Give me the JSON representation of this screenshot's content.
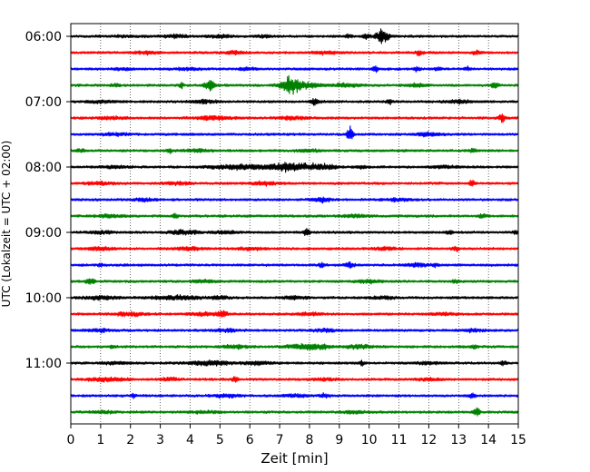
{
  "chart_data": {
    "type": "line",
    "title": "",
    "xlabel": "Zeit  [min]",
    "ylabel": "UTC (Lokalzeit = UTC + 02:00)",
    "xlim": [
      0,
      15
    ],
    "x_ticks": [
      "0",
      "1",
      "2",
      "3",
      "4",
      "5",
      "6",
      "7",
      "8",
      "9",
      "10",
      "11",
      "12",
      "13",
      "14",
      "15"
    ],
    "y_tick_labels": [
      "06:00",
      "07:00",
      "08:00",
      "09:00",
      "10:00",
      "11:00"
    ],
    "grid": "vertical dotted lines at each minute",
    "trace_minutes": 15,
    "trace_colors": [
      "#000000",
      "#ff0000",
      "#0000ff",
      "#008000"
    ],
    "trace_start_times": [
      "06:00",
      "06:15",
      "06:30",
      "06:45",
      "07:00",
      "07:15",
      "07:30",
      "07:45",
      "08:00",
      "08:15",
      "08:30",
      "08:45",
      "09:00",
      "09:15",
      "09:30",
      "09:45",
      "10:00",
      "10:15",
      "10:30",
      "10:45",
      "11:00",
      "11:15",
      "11:30",
      "11:45"
    ],
    "series": [
      {
        "start": "06:00",
        "color": "#000000",
        "events": [
          [
            2.0,
            0.5,
            0.5
          ],
          [
            10.45,
            0.15,
            7.0
          ],
          [
            9.9,
            0.1,
            2.0
          ],
          [
            3.5,
            0.3,
            1.2
          ],
          [
            5.0,
            0.3,
            1.2
          ],
          [
            6.5,
            0.2,
            1.0
          ],
          [
            9.3,
            0.1,
            1.3
          ]
        ]
      },
      {
        "start": "06:15",
        "color": "#ff0000",
        "events": [
          [
            2.5,
            0.3,
            1.1
          ],
          [
            5.5,
            0.2,
            1.3
          ],
          [
            8.5,
            0.3,
            1.2
          ],
          [
            11.7,
            0.1,
            2.2
          ],
          [
            13.6,
            0.1,
            1.5
          ]
        ]
      },
      {
        "start": "06:30",
        "color": "#0000ff",
        "events": [
          [
            1.8,
            0.2,
            1.2
          ],
          [
            3.9,
            0.3,
            1.0
          ],
          [
            5.9,
            0.2,
            1.3
          ],
          [
            10.2,
            0.07,
            3.0
          ],
          [
            11.6,
            0.08,
            1.6
          ],
          [
            12.3,
            0.08,
            1.6
          ],
          [
            13.3,
            0.07,
            1.6
          ]
        ]
      },
      {
        "start": "06:45",
        "color": "#008000",
        "events": [
          [
            1.5,
            0.1,
            1.5
          ],
          [
            3.7,
            0.05,
            3.0
          ],
          [
            4.65,
            0.12,
            5.5
          ],
          [
            7.35,
            0.22,
            7.5
          ],
          [
            7.9,
            0.35,
            2.5
          ],
          [
            9.2,
            0.3,
            1.6
          ],
          [
            11.6,
            0.2,
            1.5
          ],
          [
            14.2,
            0.08,
            2.5
          ]
        ]
      },
      {
        "start": "07:00",
        "color": "#000000",
        "events": [
          [
            1.0,
            0.3,
            1.2
          ],
          [
            4.5,
            0.3,
            1.3
          ],
          [
            8.2,
            0.1,
            3.5
          ],
          [
            10.7,
            0.07,
            2.2
          ],
          [
            13.0,
            0.3,
            1.2
          ]
        ]
      },
      {
        "start": "07:15",
        "color": "#ff0000",
        "events": [
          [
            1.4,
            0.3,
            1.2
          ],
          [
            4.8,
            0.4,
            1.8
          ],
          [
            7.4,
            0.3,
            1.5
          ],
          [
            14.45,
            0.07,
            4.0
          ]
        ]
      },
      {
        "start": "07:30",
        "color": "#0000ff",
        "events": [
          [
            1.5,
            0.3,
            1.1
          ],
          [
            9.35,
            0.07,
            6.5
          ],
          [
            12.0,
            0.3,
            1.2
          ]
        ]
      },
      {
        "start": "07:45",
        "color": "#008000",
        "events": [
          [
            0.35,
            0.1,
            1.5
          ],
          [
            3.3,
            0.05,
            2.5
          ],
          [
            4.2,
            0.3,
            1.2
          ],
          [
            13.5,
            0.07,
            2.5
          ],
          [
            8.0,
            0.3,
            1.1
          ]
        ]
      },
      {
        "start": "08:00",
        "color": "#000000",
        "events": [
          [
            1.5,
            0.3,
            1.2
          ],
          [
            5.5,
            0.6,
            1.8
          ],
          [
            7.4,
            0.6,
            3.5
          ],
          [
            8.5,
            0.3,
            1.8
          ],
          [
            9.8,
            0.1,
            1.4
          ],
          [
            12.5,
            0.3,
            1.1
          ]
        ]
      },
      {
        "start": "08:15",
        "color": "#ff0000",
        "events": [
          [
            1.0,
            0.3,
            1.3
          ],
          [
            3.6,
            0.3,
            1.2
          ],
          [
            6.5,
            0.3,
            1.4
          ],
          [
            13.45,
            0.07,
            3.0
          ]
        ]
      },
      {
        "start": "08:30",
        "color": "#0000ff",
        "events": [
          [
            2.5,
            0.3,
            1.1
          ],
          [
            8.4,
            0.2,
            2.0
          ],
          [
            11.0,
            0.3,
            1.2
          ]
        ]
      },
      {
        "start": "08:45",
        "color": "#008000",
        "events": [
          [
            1.3,
            0.3,
            1.3
          ],
          [
            3.5,
            0.07,
            2.5
          ],
          [
            9.5,
            0.3,
            1.2
          ],
          [
            13.8,
            0.1,
            1.8
          ]
        ]
      },
      {
        "start": "09:00",
        "color": "#000000",
        "events": [
          [
            1.0,
            0.3,
            1.3
          ],
          [
            3.8,
            0.3,
            1.8
          ],
          [
            7.9,
            0.07,
            3.0
          ],
          [
            5.2,
            0.3,
            1.2
          ],
          [
            12.7,
            0.07,
            1.8
          ],
          [
            14.9,
            0.07,
            1.8
          ]
        ]
      },
      {
        "start": "09:15",
        "color": "#ff0000",
        "events": [
          [
            1.0,
            0.3,
            1.4
          ],
          [
            4.0,
            0.3,
            1.4
          ],
          [
            6.0,
            0.3,
            1.3
          ],
          [
            10.5,
            0.3,
            1.2
          ],
          [
            12.9,
            0.07,
            2.5
          ]
        ]
      },
      {
        "start": "09:30",
        "color": "#0000ff",
        "events": [
          [
            1.0,
            0.07,
            1.6
          ],
          [
            8.4,
            0.07,
            2.2
          ],
          [
            9.35,
            0.1,
            3.0
          ],
          [
            11.6,
            0.3,
            1.3
          ],
          [
            12.2,
            0.07,
            1.6
          ]
        ]
      },
      {
        "start": "09:45",
        "color": "#008000",
        "events": [
          [
            0.65,
            0.1,
            2.5
          ],
          [
            4.5,
            0.3,
            1.2
          ],
          [
            10.0,
            0.3,
            1.3
          ],
          [
            12.9,
            0.07,
            1.6
          ]
        ]
      },
      {
        "start": "10:00",
        "color": "#000000",
        "events": [
          [
            1.0,
            0.4,
            1.4
          ],
          [
            3.5,
            0.6,
            1.6
          ],
          [
            5.0,
            0.2,
            1.3
          ],
          [
            7.5,
            0.3,
            1.2
          ],
          [
            10.5,
            0.3,
            1.2
          ]
        ]
      },
      {
        "start": "10:15",
        "color": "#ff0000",
        "events": [
          [
            2.0,
            0.4,
            1.5
          ],
          [
            4.5,
            0.4,
            1.3
          ],
          [
            5.1,
            0.1,
            2.5
          ],
          [
            8.0,
            0.3,
            1.2
          ],
          [
            12.5,
            0.3,
            1.1
          ]
        ]
      },
      {
        "start": "10:30",
        "color": "#0000ff",
        "events": [
          [
            1.0,
            0.3,
            1.1
          ],
          [
            5.2,
            0.3,
            1.2
          ],
          [
            8.5,
            0.3,
            1.2
          ],
          [
            13.5,
            0.3,
            1.1
          ]
        ]
      },
      {
        "start": "10:45",
        "color": "#008000",
        "events": [
          [
            1.4,
            0.08,
            1.6
          ],
          [
            5.5,
            0.3,
            1.4
          ],
          [
            8.0,
            0.55,
            2.2
          ],
          [
            9.7,
            0.3,
            1.6
          ],
          [
            13.5,
            0.07,
            1.8
          ]
        ]
      },
      {
        "start": "11:00",
        "color": "#000000",
        "events": [
          [
            1.5,
            0.3,
            1.2
          ],
          [
            4.7,
            0.5,
            1.8
          ],
          [
            6.3,
            0.3,
            1.3
          ],
          [
            9.75,
            0.07,
            2.2
          ],
          [
            12.0,
            0.3,
            1.1
          ],
          [
            14.5,
            0.07,
            1.6
          ]
        ]
      },
      {
        "start": "11:15",
        "color": "#ff0000",
        "events": [
          [
            1.2,
            0.4,
            1.8
          ],
          [
            3.3,
            0.2,
            1.6
          ],
          [
            5.5,
            0.07,
            2.5
          ],
          [
            8.5,
            0.3,
            1.1
          ],
          [
            12.0,
            0.3,
            1.1
          ]
        ]
      },
      {
        "start": "11:30",
        "color": "#0000ff",
        "events": [
          [
            2.1,
            0.07,
            1.6
          ],
          [
            5.2,
            0.3,
            1.3
          ],
          [
            7.5,
            0.3,
            1.1
          ],
          [
            8.5,
            0.1,
            1.8
          ],
          [
            13.45,
            0.07,
            2.5
          ]
        ]
      },
      {
        "start": "11:45",
        "color": "#008000",
        "events": [
          [
            1.0,
            0.3,
            1.1
          ],
          [
            4.5,
            0.3,
            1.1
          ],
          [
            9.5,
            0.3,
            1.1
          ],
          [
            13.6,
            0.07,
            5.0
          ]
        ]
      }
    ]
  }
}
